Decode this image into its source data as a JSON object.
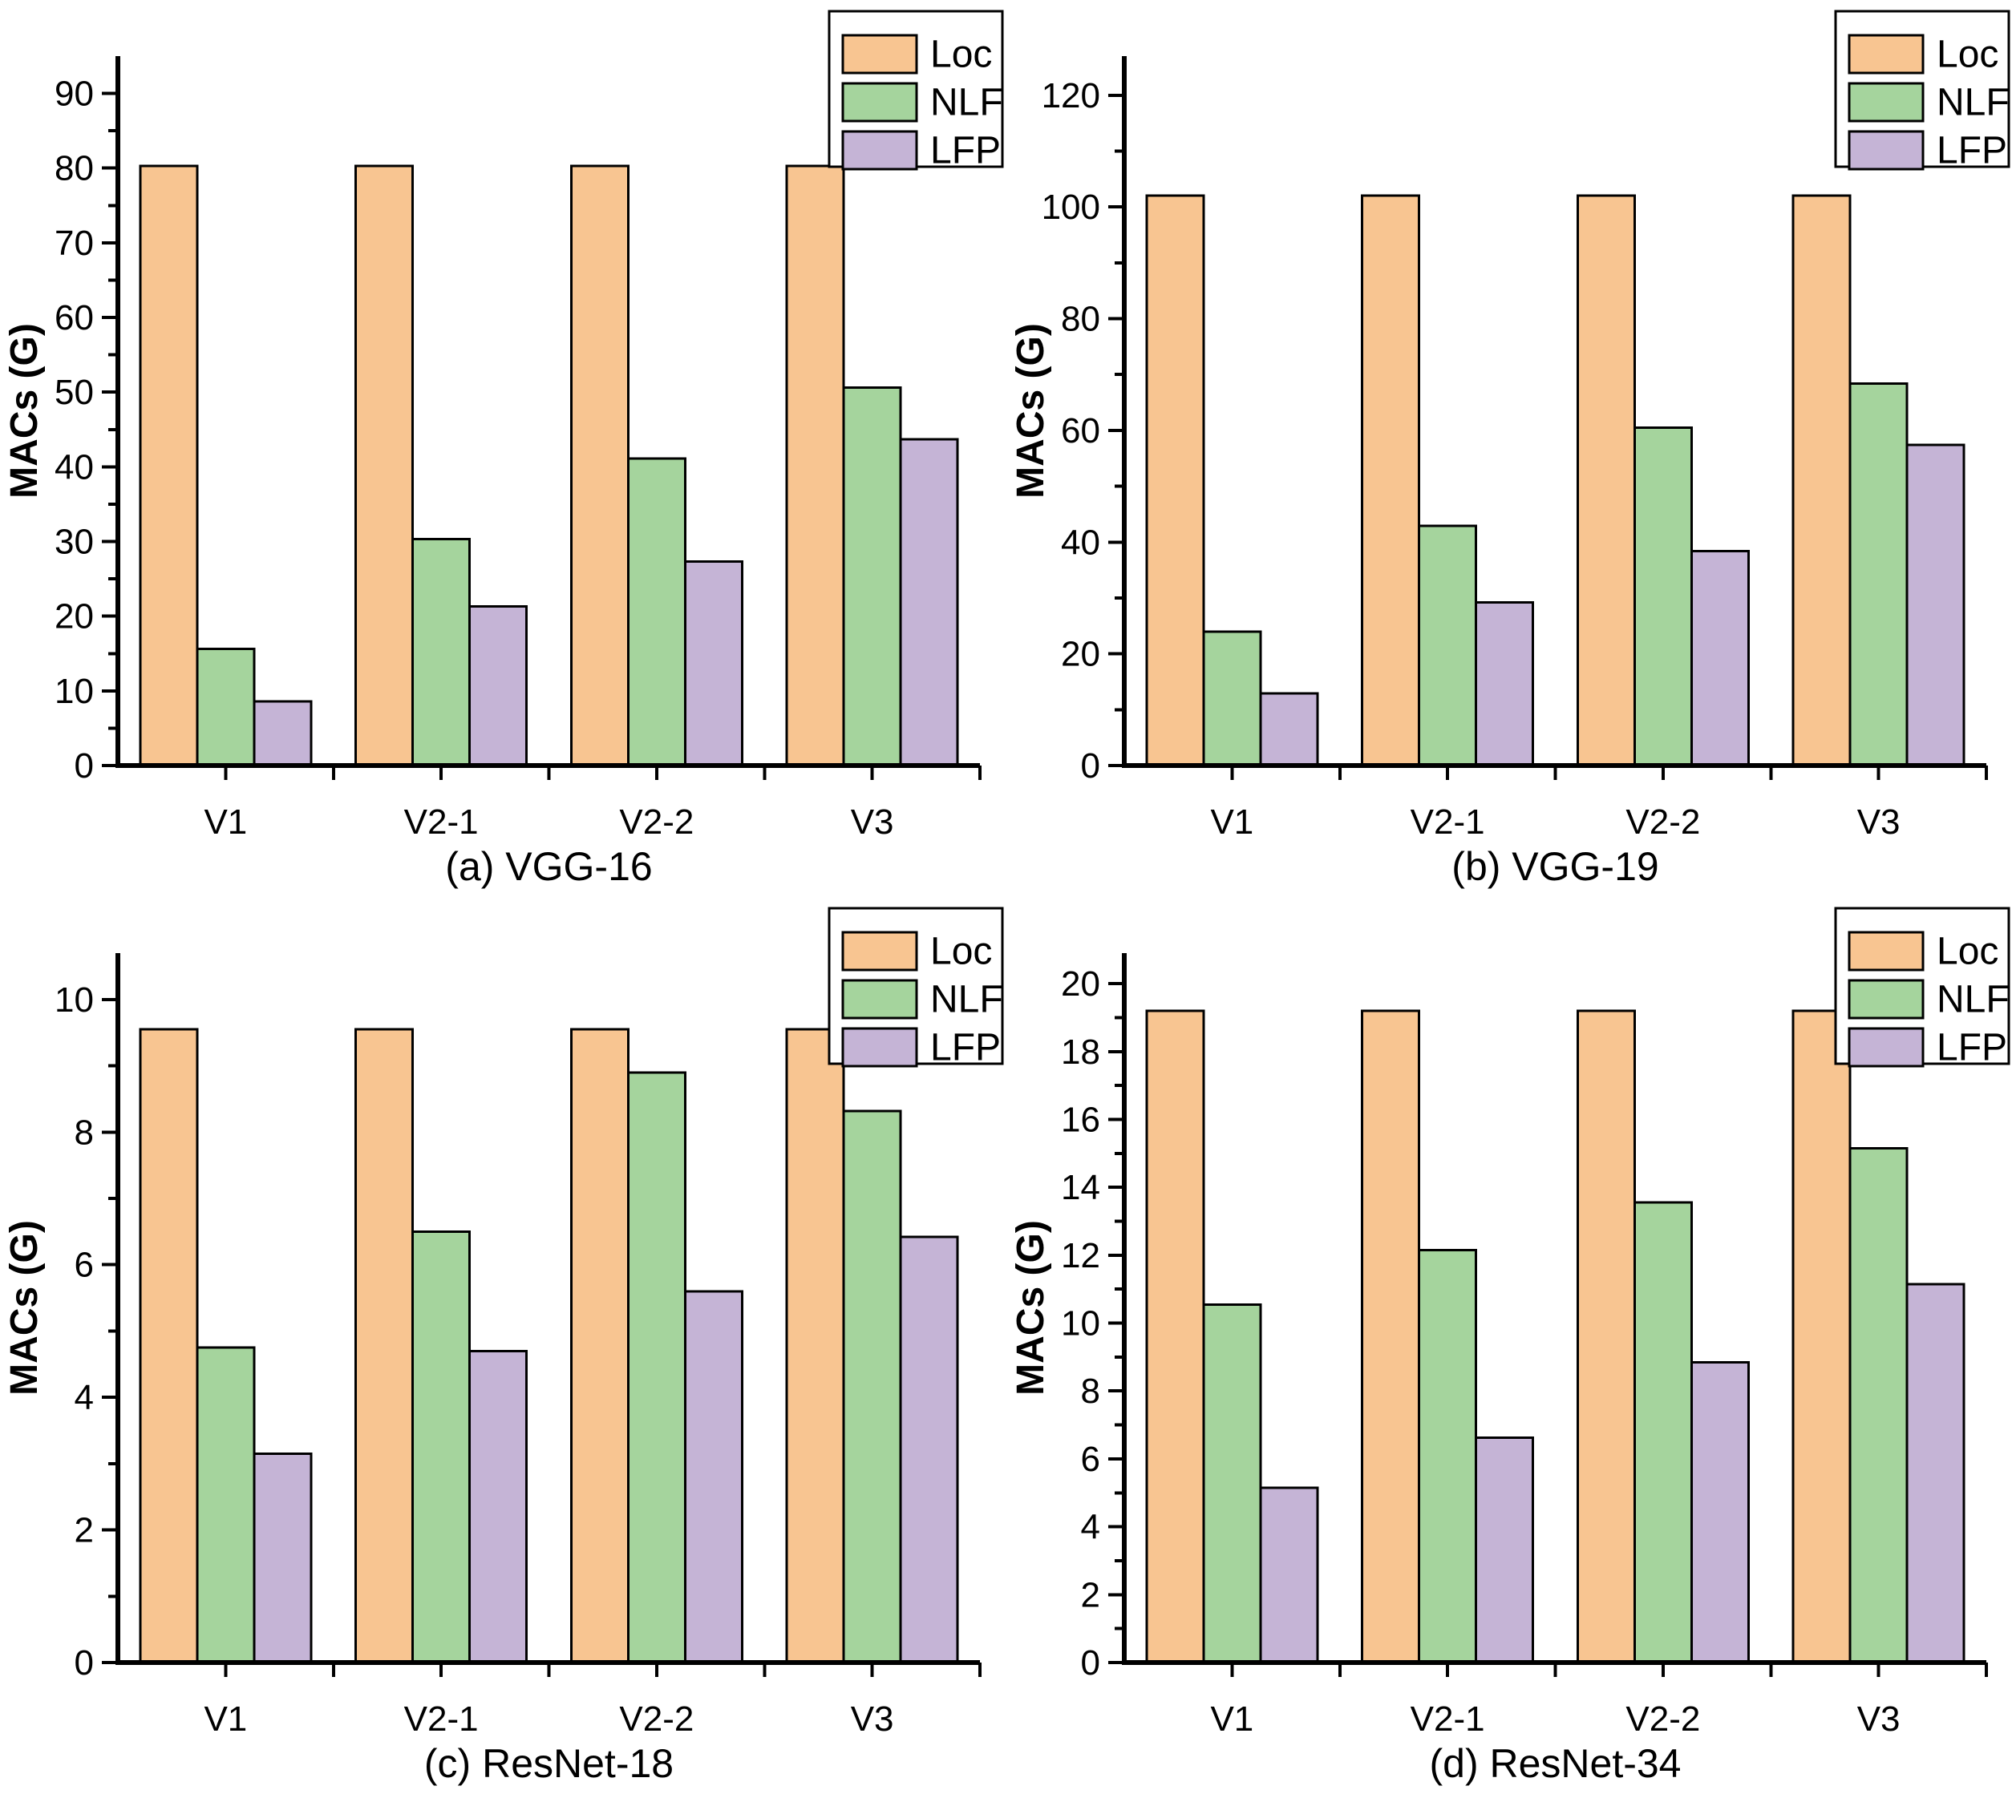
{
  "figure": {
    "type": "2x2-grid-of-bar-charts",
    "background": "#ffffff"
  },
  "style": {
    "axis_color": "#000000",
    "bar_border_color": "#000000",
    "legend_border_color": "#000000",
    "legend_background": "#ffffff"
  },
  "legend": {
    "position": "top-right",
    "items": [
      {
        "label": "Loc",
        "color": "#F8C591"
      },
      {
        "label": "NLF",
        "color": "#A5D49D"
      },
      {
        "label": "LFP",
        "color": "#C5B4D6"
      }
    ]
  },
  "chart_data": [
    {
      "type": "bar",
      "caption": "(a) VGG-16",
      "ylabel": "MACs (G)",
      "categories": [
        "V1",
        "V2-1",
        "V2-2",
        "V3"
      ],
      "series": [
        {
          "name": "Loc",
          "values": [
            80.3,
            80.3,
            80.3,
            80.3
          ]
        },
        {
          "name": "NLF",
          "values": [
            15.6,
            30.3,
            41.1,
            50.6
          ]
        },
        {
          "name": "LFP",
          "values": [
            8.6,
            21.3,
            27.3,
            43.7
          ]
        }
      ],
      "ylim": [
        0,
        95
      ],
      "ytick_max": 90,
      "ytick_major": 10,
      "ytick_minor": 5,
      "grid": false,
      "legend_entries": [
        "Loc",
        "NLF",
        "LFP"
      ],
      "legend_position": "top-right"
    },
    {
      "type": "bar",
      "caption": "(b) VGG-19",
      "ylabel": "MACs (G)",
      "categories": [
        "V1",
        "V2-1",
        "V2-2",
        "V3"
      ],
      "series": [
        {
          "name": "Loc",
          "values": [
            102,
            102,
            102,
            102
          ]
        },
        {
          "name": "NLF",
          "values": [
            24,
            42.9,
            60.5,
            68.4
          ]
        },
        {
          "name": "LFP",
          "values": [
            12.9,
            29.2,
            38.4,
            57.4
          ]
        }
      ],
      "ylim": [
        0,
        127
      ],
      "ytick_max": 120,
      "ytick_major": 20,
      "ytick_minor": 10,
      "grid": false,
      "legend_entries": [
        "Loc",
        "NLF",
        "LFP"
      ],
      "legend_position": "top-right"
    },
    {
      "type": "bar",
      "caption": "(c) ResNet-18",
      "ylabel": "MACs (G)",
      "categories": [
        "V1",
        "V2-1",
        "V2-2",
        "V3"
      ],
      "series": [
        {
          "name": "Loc",
          "values": [
            9.55,
            9.55,
            9.55,
            9.55
          ]
        },
        {
          "name": "NLF",
          "values": [
            4.75,
            6.5,
            8.9,
            8.32
          ]
        },
        {
          "name": "LFP",
          "values": [
            3.15,
            4.7,
            5.6,
            6.42
          ]
        }
      ],
      "ylim": [
        0,
        10.7
      ],
      "ytick_max": 10,
      "ytick_major": 2,
      "ytick_minor": 1,
      "grid": false,
      "legend_entries": [
        "Loc",
        "NLF",
        "LFP"
      ],
      "legend_position": "top-right"
    },
    {
      "type": "bar",
      "caption": "(d) ResNet-34",
      "ylabel": "MACs (G)",
      "categories": [
        "V1",
        "V2-1",
        "V2-2",
        "V3"
      ],
      "series": [
        {
          "name": "Loc",
          "values": [
            19.2,
            19.2,
            19.2,
            19.2
          ]
        },
        {
          "name": "NLF",
          "values": [
            10.55,
            12.15,
            13.55,
            15.15
          ]
        },
        {
          "name": "LFP",
          "values": [
            5.15,
            6.62,
            8.85,
            11.15
          ]
        }
      ],
      "ylim": [
        0,
        20.9
      ],
      "ytick_max": 20,
      "ytick_major": 2,
      "ytick_minor": 1,
      "grid": false,
      "legend_entries": [
        "Loc",
        "NLF",
        "LFP"
      ],
      "legend_position": "top-right"
    }
  ]
}
